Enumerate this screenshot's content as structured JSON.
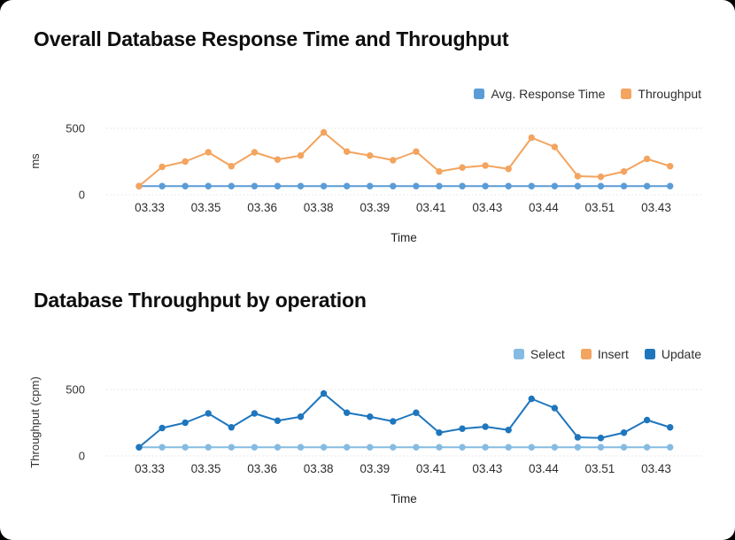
{
  "page": {
    "background_color": "#000000",
    "card_background_color": "#ffffff"
  },
  "chart_data": [
    {
      "type": "line",
      "title": "Overall Database Response Time and Throughput",
      "xlabel": "Time",
      "ylabel": "ms",
      "ylim": [
        0,
        500
      ],
      "yticks": [
        0,
        500
      ],
      "grid": "dotted-horizontal",
      "legend_position": "top-right",
      "x_labels": [
        "03.33",
        "03.35",
        "03.36",
        "03.38",
        "03.39",
        "03.41",
        "03.43",
        "03.44",
        "03.51",
        "03.43"
      ],
      "series": [
        {
          "name": "Avg. Response Time",
          "color": "#5b9cd6",
          "values": [
            65,
            65,
            65,
            65,
            65,
            65,
            65,
            65,
            65,
            65,
            65,
            65,
            65,
            65,
            65,
            65,
            65,
            65,
            65,
            65,
            65,
            65,
            65,
            65
          ]
        },
        {
          "name": "Throughput",
          "color": "#f3a45f",
          "values": [
            65,
            210,
            250,
            320,
            215,
            320,
            265,
            295,
            470,
            325,
            295,
            260,
            325,
            175,
            205,
            220,
            195,
            430,
            360,
            140,
            135,
            175,
            270,
            215
          ]
        }
      ]
    },
    {
      "type": "line",
      "title": "Database Throughput by operation",
      "xlabel": "Time",
      "ylabel": "Throughput (cpm)",
      "ylim": [
        0,
        500
      ],
      "yticks": [
        0,
        500
      ],
      "grid": "dotted-horizontal",
      "legend_position": "top-right",
      "x_labels": [
        "03.33",
        "03.35",
        "03.36",
        "03.38",
        "03.39",
        "03.41",
        "03.43",
        "03.44",
        "03.51",
        "03.43"
      ],
      "series": [
        {
          "name": "Select",
          "color": "#85bbe2",
          "values": [
            65,
            65,
            65,
            65,
            65,
            65,
            65,
            65,
            65,
            65,
            65,
            65,
            65,
            65,
            65,
            65,
            65,
            65,
            65,
            65,
            65,
            65,
            65,
            65
          ]
        },
        {
          "name": "Insert",
          "color": "#f3a45f",
          "values": []
        },
        {
          "name": "Update",
          "color": "#1e76bd",
          "values": [
            65,
            210,
            250,
            320,
            215,
            320,
            265,
            295,
            470,
            325,
            295,
            260,
            325,
            175,
            205,
            220,
            195,
            430,
            360,
            140,
            135,
            175,
            270,
            215
          ]
        }
      ]
    }
  ]
}
